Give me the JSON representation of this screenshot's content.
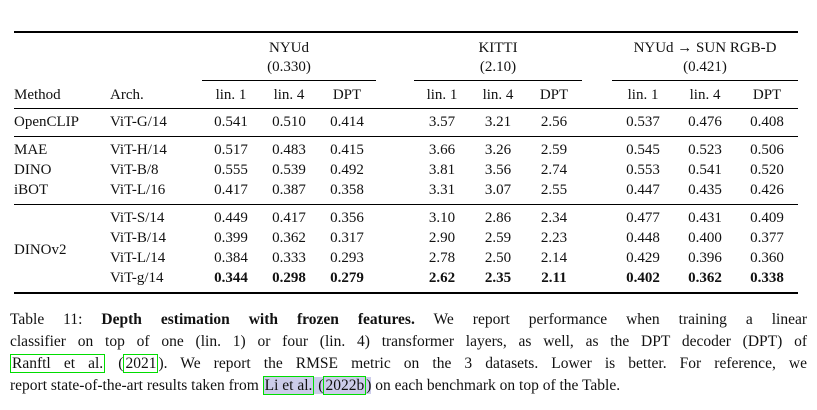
{
  "colors": {
    "link_box_green": "#00dd00",
    "citation_highlight": "#ccccea",
    "text": "#111111",
    "background": "#ffffff"
  },
  "table": {
    "groups": [
      {
        "name": "NYUd",
        "sota": "(0.330)"
      },
      {
        "name": "KITTI",
        "sota": "(2.10)"
      },
      {
        "name": "NYUd → SUN RGB-D",
        "sota": "(0.421)"
      }
    ],
    "col_headers": [
      "Method",
      "Arch.",
      "lin. 1",
      "lin. 4",
      "DPT",
      "lin. 1",
      "lin. 4",
      "DPT",
      "lin. 1",
      "lin. 4",
      "DPT"
    ],
    "sections": [
      {
        "rows": [
          {
            "method": "OpenCLIP",
            "arch": "ViT-G/14",
            "values": [
              "0.541",
              "0.510",
              "0.414",
              "3.57",
              "3.21",
              "2.56",
              "0.537",
              "0.476",
              "0.408"
            ],
            "bold": false
          }
        ]
      },
      {
        "rows": [
          {
            "method": "MAE",
            "arch": "ViT-H/14",
            "values": [
              "0.517",
              "0.483",
              "0.415",
              "3.66",
              "3.26",
              "2.59",
              "0.545",
              "0.523",
              "0.506"
            ],
            "bold": false
          },
          {
            "method": "DINO",
            "arch": "ViT-B/8",
            "values": [
              "0.555",
              "0.539",
              "0.492",
              "3.81",
              "3.56",
              "2.74",
              "0.553",
              "0.541",
              "0.520"
            ],
            "bold": false
          },
          {
            "method": "iBOT",
            "arch": "ViT-L/16",
            "values": [
              "0.417",
              "0.387",
              "0.358",
              "3.31",
              "3.07",
              "2.55",
              "0.447",
              "0.435",
              "0.426"
            ],
            "bold": false
          }
        ]
      },
      {
        "label": "DINOv2",
        "rows": [
          {
            "arch": "ViT-S/14",
            "values": [
              "0.449",
              "0.417",
              "0.356",
              "3.10",
              "2.86",
              "2.34",
              "0.477",
              "0.431",
              "0.409"
            ],
            "bold": false
          },
          {
            "arch": "ViT-B/14",
            "values": [
              "0.399",
              "0.362",
              "0.317",
              "2.90",
              "2.59",
              "2.23",
              "0.448",
              "0.400",
              "0.377"
            ],
            "bold": false
          },
          {
            "arch": "ViT-L/14",
            "values": [
              "0.384",
              "0.333",
              "0.293",
              "2.78",
              "2.50",
              "2.14",
              "0.429",
              "0.396",
              "0.360"
            ],
            "bold": false
          },
          {
            "arch": "ViT-g/14",
            "values": [
              "0.344",
              "0.298",
              "0.279",
              "2.62",
              "2.35",
              "2.11",
              "0.402",
              "0.362",
              "0.338"
            ],
            "bold": true
          }
        ]
      }
    ]
  },
  "caption": {
    "lines": [
      {
        "segments": [
          {
            "text": "Table 11: ",
            "styles": []
          },
          {
            "text": "Depth estimation with frozen features.",
            "styles": [
              "bold"
            ]
          },
          {
            "text": " We report performance when training a linear",
            "styles": []
          }
        ]
      },
      {
        "segments": [
          {
            "text": "classifier on top of one (lin. 1) or four (lin. 4) transformer layers, as well, as the DPT decoder (DPT) of",
            "styles": []
          }
        ]
      },
      {
        "segments": [
          {
            "text": "Ranftl et al.",
            "styles": [
              "link"
            ],
            "name": "citation-link-ranftl",
            "link": true
          },
          {
            "text": " (",
            "styles": []
          },
          {
            "text": "2021",
            "styles": [
              "link"
            ],
            "name": "citation-link-ranftl-year",
            "link": true
          },
          {
            "text": "). We report the RMSE metric on the 3 datasets. Lower is better. For reference, we",
            "styles": []
          }
        ]
      },
      {
        "segments": [
          {
            "text": "report state-of-the-art results taken from ",
            "styles": []
          },
          {
            "text": "Li et al.",
            "styles": [
              "link",
              "hl"
            ],
            "name": "citation-link-li",
            "link": true
          },
          {
            "text": " (",
            "styles": [
              "hl"
            ]
          },
          {
            "text": "2022b",
            "styles": [
              "link",
              "hl"
            ],
            "name": "citation-link-li-year",
            "link": true
          },
          {
            "text": ")",
            "styles": [
              "hl"
            ]
          },
          {
            "text": " on each benchmark on top of the Table.",
            "styles": []
          }
        ]
      }
    ]
  }
}
